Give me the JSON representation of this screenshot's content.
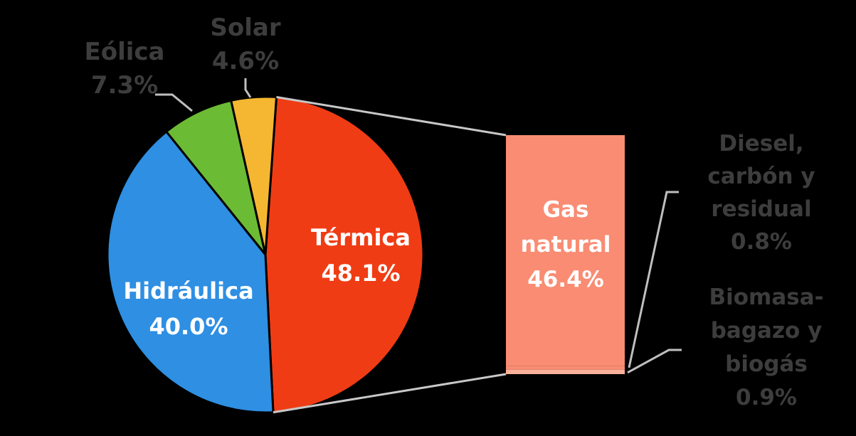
{
  "chart_data": {
    "type": "pie",
    "subtype": "bar-of-pie",
    "pie": [
      {
        "name": "Térmica",
        "value": 48.1,
        "label": "48.1%",
        "color": "#f03c14"
      },
      {
        "name": "Hidráulica",
        "value": 40.0,
        "label": "40.0%",
        "color": "#2e8fe3"
      },
      {
        "name": "Eólica",
        "value": 7.3,
        "label": "7.3%",
        "color": "#6cbb34"
      },
      {
        "name": "Solar",
        "value": 4.6,
        "label": "4.6%",
        "color": "#f5b731"
      }
    ],
    "breakdown_of": "Térmica",
    "bar": [
      {
        "name": "Gas natural",
        "name_lines": [
          "Gas",
          "natural"
        ],
        "value": 46.4,
        "label": "46.4%",
        "color": "#f98c73"
      },
      {
        "name": "Diesel, carbón y residual",
        "name_lines": [
          "Diesel,",
          "carbón y",
          "residual"
        ],
        "value": 0.8,
        "label": "0.8%",
        "color": "#f98c73"
      },
      {
        "name": "Biomasa-bagazo y biogás",
        "name_lines": [
          "Biomasa-",
          "bagazo y",
          "biogás"
        ],
        "value": 0.9,
        "label": "0.9%",
        "color": "#fbb09a"
      }
    ],
    "connector_color": "#c8c8c8",
    "legend": "none"
  }
}
